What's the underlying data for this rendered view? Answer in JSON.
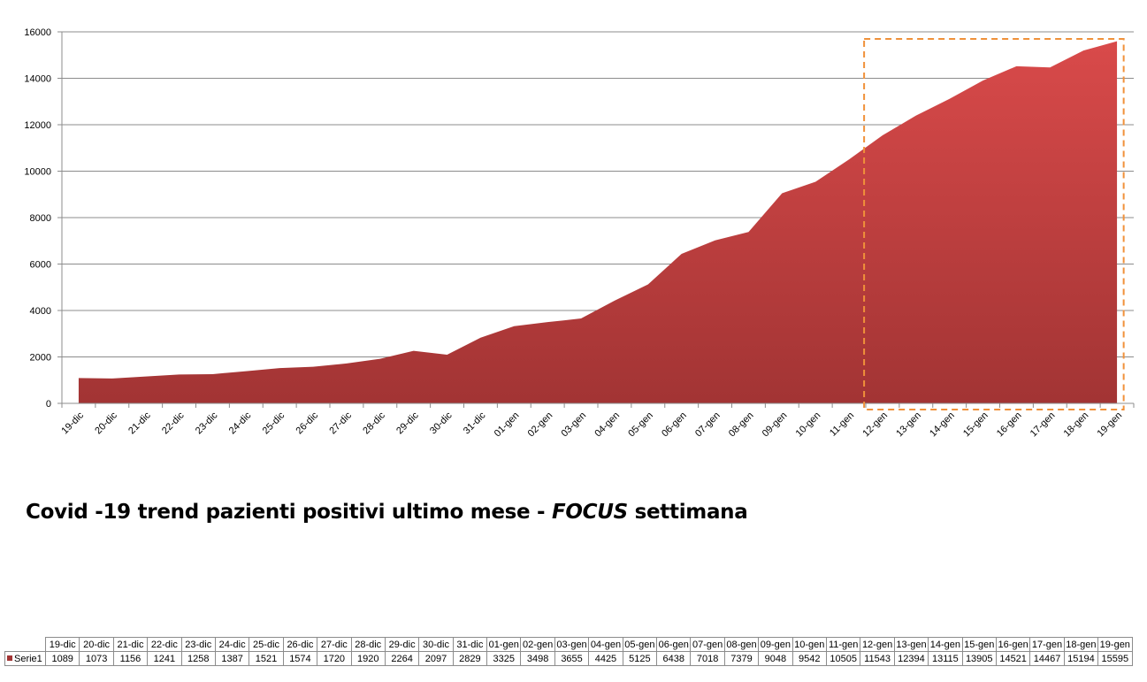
{
  "chart_data": {
    "type": "area",
    "title_main": "Covid -19 trend pazienti positivi ultimo mese - ",
    "title_focus": "FOCUS",
    "title_end": " settimana",
    "categories": [
      "19-dic",
      "20-dic",
      "21-dic",
      "22-dic",
      "23-dic",
      "24-dic",
      "25-dic",
      "26-dic",
      "27-dic",
      "28-dic",
      "29-dic",
      "30-dic",
      "31-dic",
      "01-gen",
      "02-gen",
      "03-gen",
      "04-gen",
      "05-gen",
      "06-gen",
      "07-gen",
      "08-gen",
      "09-gen",
      "10-gen",
      "11-gen",
      "12-gen",
      "13-gen",
      "14-gen",
      "15-gen",
      "16-gen",
      "17-gen",
      "18-gen",
      "19-gen"
    ],
    "series": [
      {
        "name": "Serie1",
        "values": [
          1089,
          1073,
          1156,
          1241,
          1258,
          1387,
          1521,
          1574,
          1720,
          1920,
          2264,
          2097,
          2829,
          3325,
          3498,
          3655,
          4425,
          5125,
          6438,
          7018,
          7379,
          9048,
          9542,
          10505,
          11543,
          12394,
          13115,
          13905,
          14521,
          14467,
          15194,
          15595
        ]
      }
    ],
    "y_ticks": [
      "0",
      "2000",
      "4000",
      "6000",
      "8000",
      "10000",
      "12000",
      "14000",
      "16000"
    ],
    "ylim": [
      0,
      16000
    ],
    "grid": true,
    "legend": "table-bottom",
    "highlight_range": [
      "12-gen",
      "19-gen"
    ],
    "colors": {
      "area_top": "#d94a4a",
      "area_bottom": "#a23434",
      "highlight_border": "#f0913a",
      "grid": "#8c8c8c"
    }
  }
}
